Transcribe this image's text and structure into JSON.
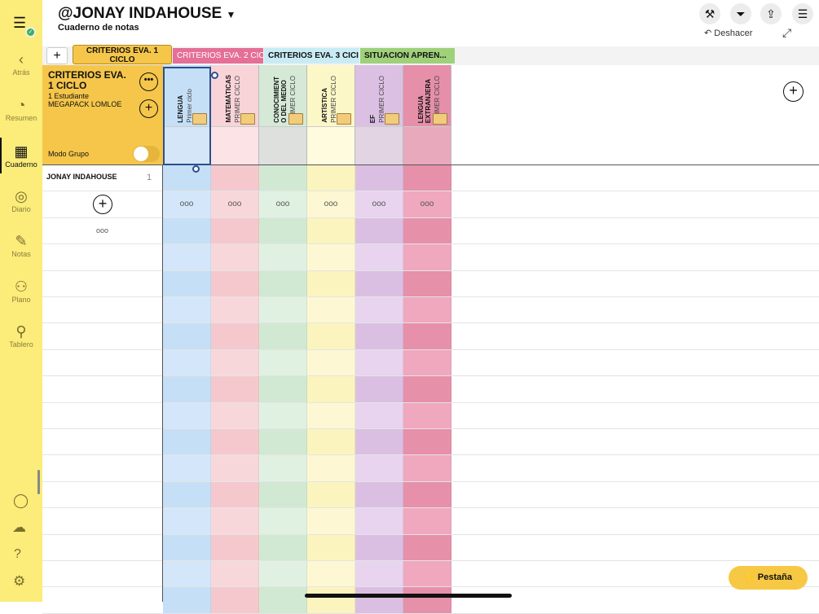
{
  "sidebar": {
    "items": [
      {
        "label": "Atrás",
        "icon": "‹"
      },
      {
        "label": "Resumen",
        "icon": "◔"
      },
      {
        "label": "Cuaderno",
        "icon": "▦"
      },
      {
        "label": "Diario",
        "icon": "◎"
      },
      {
        "label": "Notas",
        "icon": "✎"
      },
      {
        "label": "Plano",
        "icon": "⚇"
      },
      {
        "label": "Tablero",
        "icon": "⚲"
      }
    ]
  },
  "header": {
    "title": "@JONAY INDAHOUSE",
    "title_caret": "▼",
    "subtitle": "Cuaderno de notas",
    "undo": "Deshacer"
  },
  "tabs": [
    {
      "label": "CRITERIOS EVA. 1 CICLO",
      "color": "#f5c64a"
    },
    {
      "label": "CRITERIOS EVA. 2 CICI",
      "color": "#e56f97"
    },
    {
      "label": "CRITERIOS EVA. 3 CICI",
      "color": "#c9ecf4"
    },
    {
      "label": "SITUACION APREN...",
      "color": "#9fd07a"
    }
  ],
  "panel": {
    "title": "CRITERIOS EVA. 1 CICLO",
    "students": "1 Estudiante",
    "pack": "MEGAPACK LOMLOE",
    "group_mode": "Modo Grupo",
    "group_mode_on": false
  },
  "columns": [
    {
      "name": "LENGUA",
      "sub": "Primer ciclo",
      "c1": "#c5dff7",
      "c2": "#d4e7fa",
      "h": "#c5dff7",
      "hb": "#d4e6f7"
    },
    {
      "name": "MATEMÁTICAS",
      "sub": "PRIMER CICLO",
      "c1": "#f5c8cd",
      "c2": "#f8d7db",
      "h": "#f8d3d7",
      "hb": "#fbe3e6"
    },
    {
      "name": "CONOCIMIENT\nO DEL MEDIO",
      "sub": "PRIMER CICLO",
      "c1": "#d1e9d2",
      "c2": "#e0f1e1",
      "h": "#d5e9d6",
      "hb": "#dde0dc"
    },
    {
      "name": "ARTÍSTICA",
      "sub": "PRIMER CICLO",
      "c1": "#fbf4be",
      "c2": "#fdf8d3",
      "h": "#fcf7c6",
      "hb": "#fefbdf"
    },
    {
      "name": "EF",
      "sub": "PRIMER CICLO",
      "c1": "#dbbfe3",
      "c2": "#e8d4ee",
      "h": "#dcc0e4",
      "hb": "#e2d4e2"
    },
    {
      "name": "LENGUA\nEXTRANJERA",
      "sub": "PRIMER CICLO",
      "c1": "#e690aa",
      "c2": "#f0a8be",
      "h": "#e68fa9",
      "hb": "#e8a9bd"
    }
  ],
  "students": [
    {
      "name": "JONAY INDAHOUSE",
      "number": "1"
    }
  ],
  "more": "ooo",
  "pestana": "Pestaña"
}
